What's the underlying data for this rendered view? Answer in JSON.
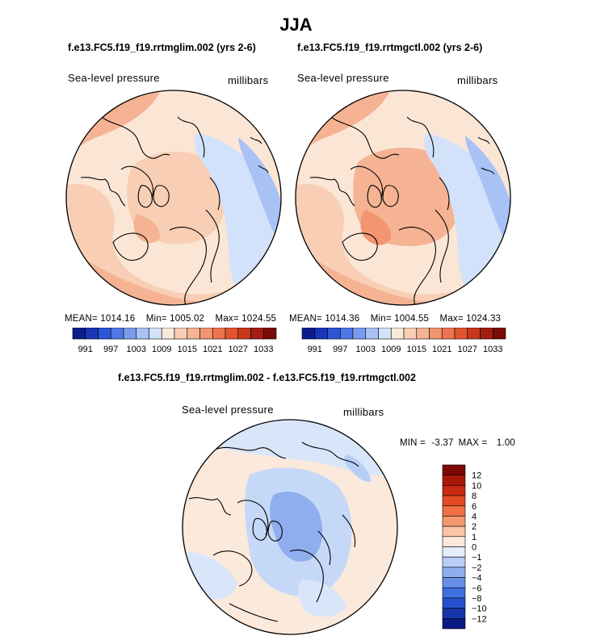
{
  "figure": {
    "season": "JJA",
    "variable_label": "Sea-level pressure",
    "units_label": "millibars"
  },
  "panels": {
    "left": {
      "title": "f.e13.FC5.f19_f19.rrtmglim.002 (yrs 2-6)",
      "mean": "MEAN= 1014.16",
      "min": "Min= 1005.02",
      "max": "Max= 1024.55"
    },
    "right": {
      "title": "f.e13.FC5.f19_f19.rrtmgctl.002 (yrs 2-6)",
      "mean": "MEAN= 1014.36",
      "min": "Min= 1004.55",
      "max": "Max= 1024.33"
    },
    "diff": {
      "title": "f.e13.FC5.f19_f19.rrtmglim.002 - f.e13.FC5.f19_f19.rrtmgctl.002",
      "min_label": "MIN = ",
      "min_value": "-3.37",
      "max_label": "MAX = ",
      "max_value": "1.00"
    }
  },
  "chart_data": [
    {
      "type": "heatmap",
      "projection": "north-polar-stereographic",
      "title": "f.e13.FC5.f19_f19.rrtmglim.002 (yrs 2-6)",
      "variable": "Sea-level pressure",
      "units": "millibars",
      "stats": {
        "mean": 1014.16,
        "min": 1005.02,
        "max": 1024.55
      },
      "colorbar_ticks": [
        991,
        997,
        1003,
        1009,
        1015,
        1021,
        1027,
        1033
      ]
    },
    {
      "type": "heatmap",
      "projection": "north-polar-stereographic",
      "title": "f.e13.FC5.f19_f19.rrtmgctl.002 (yrs 2-6)",
      "variable": "Sea-level pressure",
      "units": "millibars",
      "stats": {
        "mean": 1014.36,
        "min": 1004.55,
        "max": 1024.33
      },
      "colorbar_ticks": [
        991,
        997,
        1003,
        1009,
        1015,
        1021,
        1027,
        1033
      ]
    },
    {
      "type": "heatmap",
      "projection": "north-polar-stereographic",
      "title": "f.e13.FC5.f19_f19.rrtmglim.002 - f.e13.FC5.f19_f19.rrtmgctl.002",
      "variable": "Sea-level pressure",
      "units": "millibars",
      "stats": {
        "min": -3.37,
        "max": 1.0
      },
      "colorbar_ticks": [
        12,
        10,
        8,
        6,
        4,
        2,
        1,
        0,
        -1,
        -2,
        -4,
        -6,
        -8,
        -10,
        -12
      ]
    }
  ],
  "colorbars": {
    "abs_ticks": [
      "991",
      "997",
      "1003",
      "1009",
      "1015",
      "1021",
      "1027",
      "1033"
    ],
    "abs_colors": [
      "#0b1c8e",
      "#1736b8",
      "#2c55d6",
      "#4f77e8",
      "#7a9cf0",
      "#a9c2f6",
      "#d3e2fb",
      "#fbe9d8",
      "#f8cfb5",
      "#f5b394",
      "#f29570",
      "#ee744f",
      "#e2542e",
      "#c9381c",
      "#a31e10",
      "#7c0a06"
    ],
    "diff_ticks": [
      "12",
      "10",
      "8",
      "6",
      "4",
      "2",
      "1",
      "0",
      "−1",
      "−2",
      "−4",
      "−6",
      "−8",
      "−10",
      "−12"
    ],
    "diff_colors": [
      "#7d0a05",
      "#a5180a",
      "#c92a12",
      "#e24b25",
      "#ee7043",
      "#f5986e",
      "#f9c5a5",
      "#fde9dc",
      "#e4eefb",
      "#b9cef5",
      "#8eaeee",
      "#6690e8",
      "#3f6fe0",
      "#2451cf",
      "#1635ab",
      "#0a1a80"
    ]
  }
}
